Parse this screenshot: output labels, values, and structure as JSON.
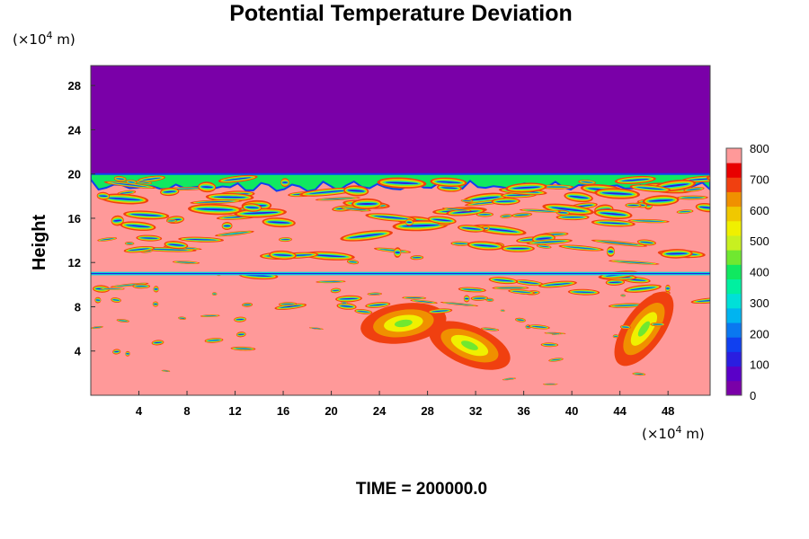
{
  "chart_data": {
    "type": "heatmap",
    "title": "Potential Temperature Deviation",
    "ylabel": "Height",
    "y_unit_prefix": "(×10",
    "y_unit_exp": "4",
    "y_unit_suffix": " m)",
    "x_unit_prefix": "(×10",
    "x_unit_exp": "4",
    "x_unit_suffix": " m)",
    "xlim": [
      0,
      51.5
    ],
    "ylim": [
      0,
      29.8
    ],
    "x_ticks": [
      4,
      8,
      12,
      16,
      20,
      24,
      28,
      32,
      36,
      40,
      44,
      48
    ],
    "y_ticks": [
      4,
      8,
      12,
      16,
      20,
      24,
      28
    ],
    "colorbar": {
      "min": 0,
      "max": 800,
      "tick_values": [
        0,
        100,
        200,
        300,
        400,
        500,
        600,
        700,
        800
      ],
      "levels": 16,
      "colors": [
        "#7a00a8",
        "#5a00c8",
        "#2a1ee0",
        "#1040f0",
        "#0a78f0",
        "#00b4f0",
        "#00e0d8",
        "#00f0a0",
        "#10e860",
        "#70e830",
        "#c8f020",
        "#f0f000",
        "#f0c800",
        "#f09000",
        "#f04010",
        "#e80000",
        "#ff9999"
      ]
    },
    "background_value": 800,
    "upper_region": {
      "value": 0,
      "y_range": [
        20,
        29.8
      ]
    },
    "layers_top_y": 20,
    "layer_band_y": 11,
    "annotations": [
      {
        "label": "warm-anomaly-left",
        "x": 26,
        "y": 6.5
      },
      {
        "label": "wave-packet-center",
        "x": 31.5,
        "y": 4.5
      },
      {
        "label": "plume-right",
        "x": 46,
        "y": 6
      }
    ],
    "footer": "TIME = 200000.0",
    "grid": false,
    "legend": "colorbar-right"
  }
}
